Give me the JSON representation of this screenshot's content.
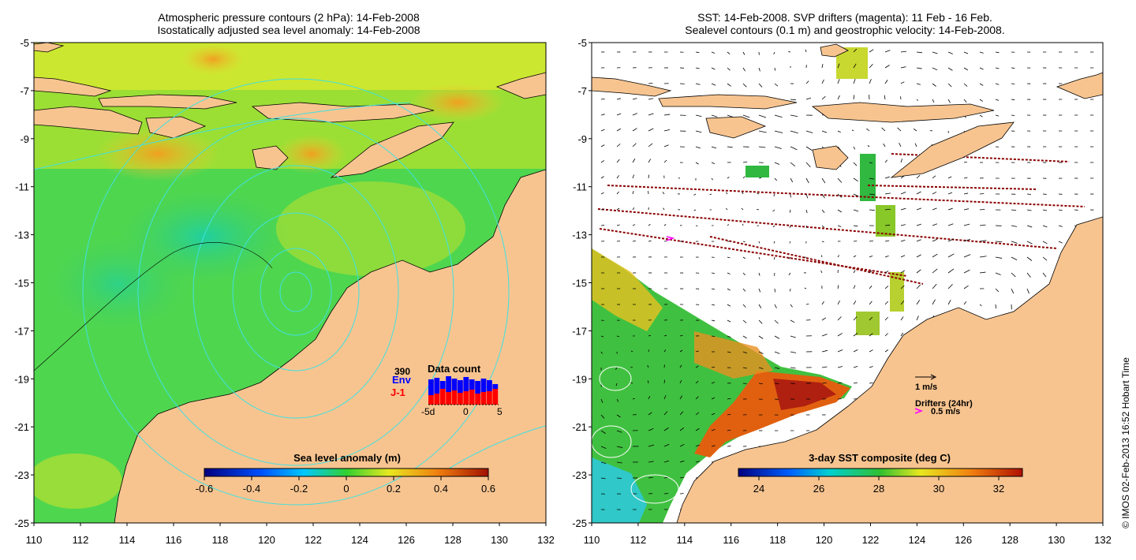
{
  "left_panel": {
    "title_line1": "Atmospheric pressure contours (2 hPa): 14-Feb-2008",
    "title_line2": "Isostatically adjusted sea level anomaly: 14-Feb-2008",
    "colorbar_label": "Sea level anomaly (m)",
    "colorbar_ticks": [
      "-0.6",
      "-0.4",
      "-0.2",
      "0",
      "0.2",
      "0.4",
      "0.6"
    ],
    "inset": {
      "title": "Data count",
      "count": "390",
      "env_label": "Env",
      "j1_label": "J-1",
      "x_ticks": [
        "-5d",
        "0",
        "5"
      ],
      "env_color": "#0000ff",
      "j1_color": "#ff0000"
    }
  },
  "right_panel": {
    "title_line1": "SST: 14-Feb-2008. SVP drifters (magenta): 11 Feb - 16 Feb.",
    "title_line2": "Sealevel contours (0.1 m) and geostrophic velocity: 14-Feb-2008.",
    "colorbar_label": "3-day SST composite (deg C)",
    "colorbar_ticks": [
      "24",
      "26",
      "28",
      "30",
      "32"
    ],
    "scale_velocity": "1 m/s",
    "drifters_label": "Drifters (24hr)",
    "drifter_speed": "0.5 m/s"
  },
  "axes": {
    "lat_ticks": [
      "-5",
      "-7",
      "-9",
      "-11",
      "-13",
      "-15",
      "-17",
      "-19",
      "-21",
      "-23",
      "-25"
    ],
    "lon_ticks": [
      "110",
      "112",
      "114",
      "116",
      "118",
      "120",
      "122",
      "124",
      "126",
      "128",
      "130",
      "132"
    ]
  },
  "credit": "© IMOS 02-Feb-2013 16:52 Hobart Time",
  "colors": {
    "land": "#f7c490",
    "ocean_green": "#4fd64f",
    "contour": "#40e0e0",
    "drifter": "#ff00ff",
    "track": "#8b0000"
  }
}
